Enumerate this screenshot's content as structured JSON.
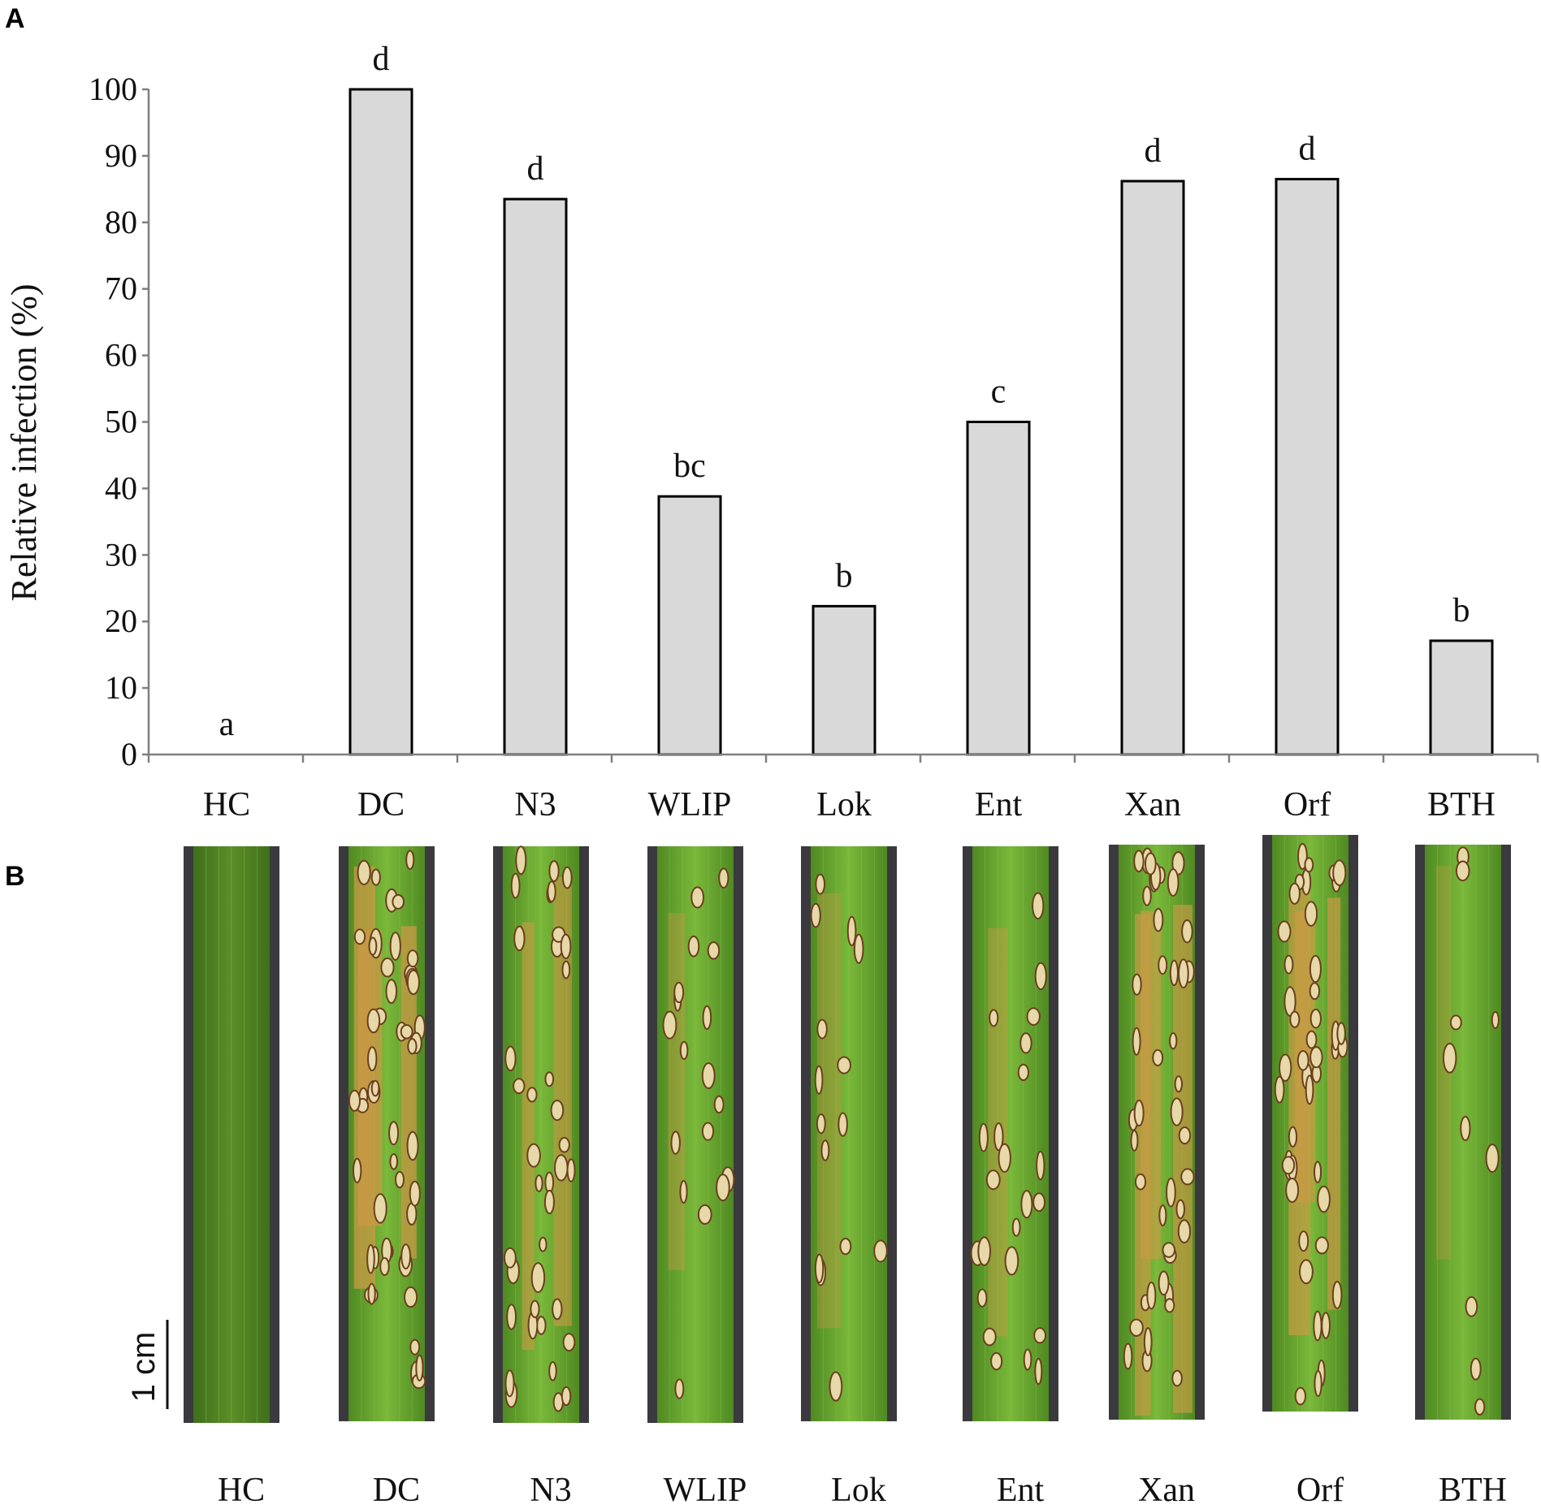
{
  "panels": {
    "a_label": "A",
    "b_label": "B"
  },
  "chart_data": {
    "type": "bar",
    "title": "",
    "xlabel": "",
    "ylabel": "Relative infection (%)",
    "ylim": [
      0,
      100
    ],
    "yticks": [
      0,
      10,
      20,
      30,
      40,
      50,
      60,
      70,
      80,
      90,
      100
    ],
    "categories": [
      "HC",
      "DC",
      "N3",
      "WLIP",
      "Lok",
      "Ent",
      "Xan",
      "Orf",
      "BTH"
    ],
    "values": [
      0,
      100,
      83.5,
      38.8,
      22.3,
      50,
      86.2,
      86.5,
      17.1
    ],
    "significance_letters": [
      "a",
      "d",
      "d",
      "bc",
      "b",
      "c",
      "d",
      "d",
      "b"
    ],
    "bar_color": "#d9d9d9",
    "grid": false
  },
  "photos": {
    "labels": [
      "HC",
      "DC",
      "N3",
      "WLIP",
      "Lok",
      "Ent",
      "Xan",
      "Orf",
      "BTH"
    ],
    "scale_bar_label": "1 cm",
    "leaf_green": "#5d9a2a",
    "lesion_tan": "#c99a45",
    "background_dark": "#3a3a3e"
  }
}
